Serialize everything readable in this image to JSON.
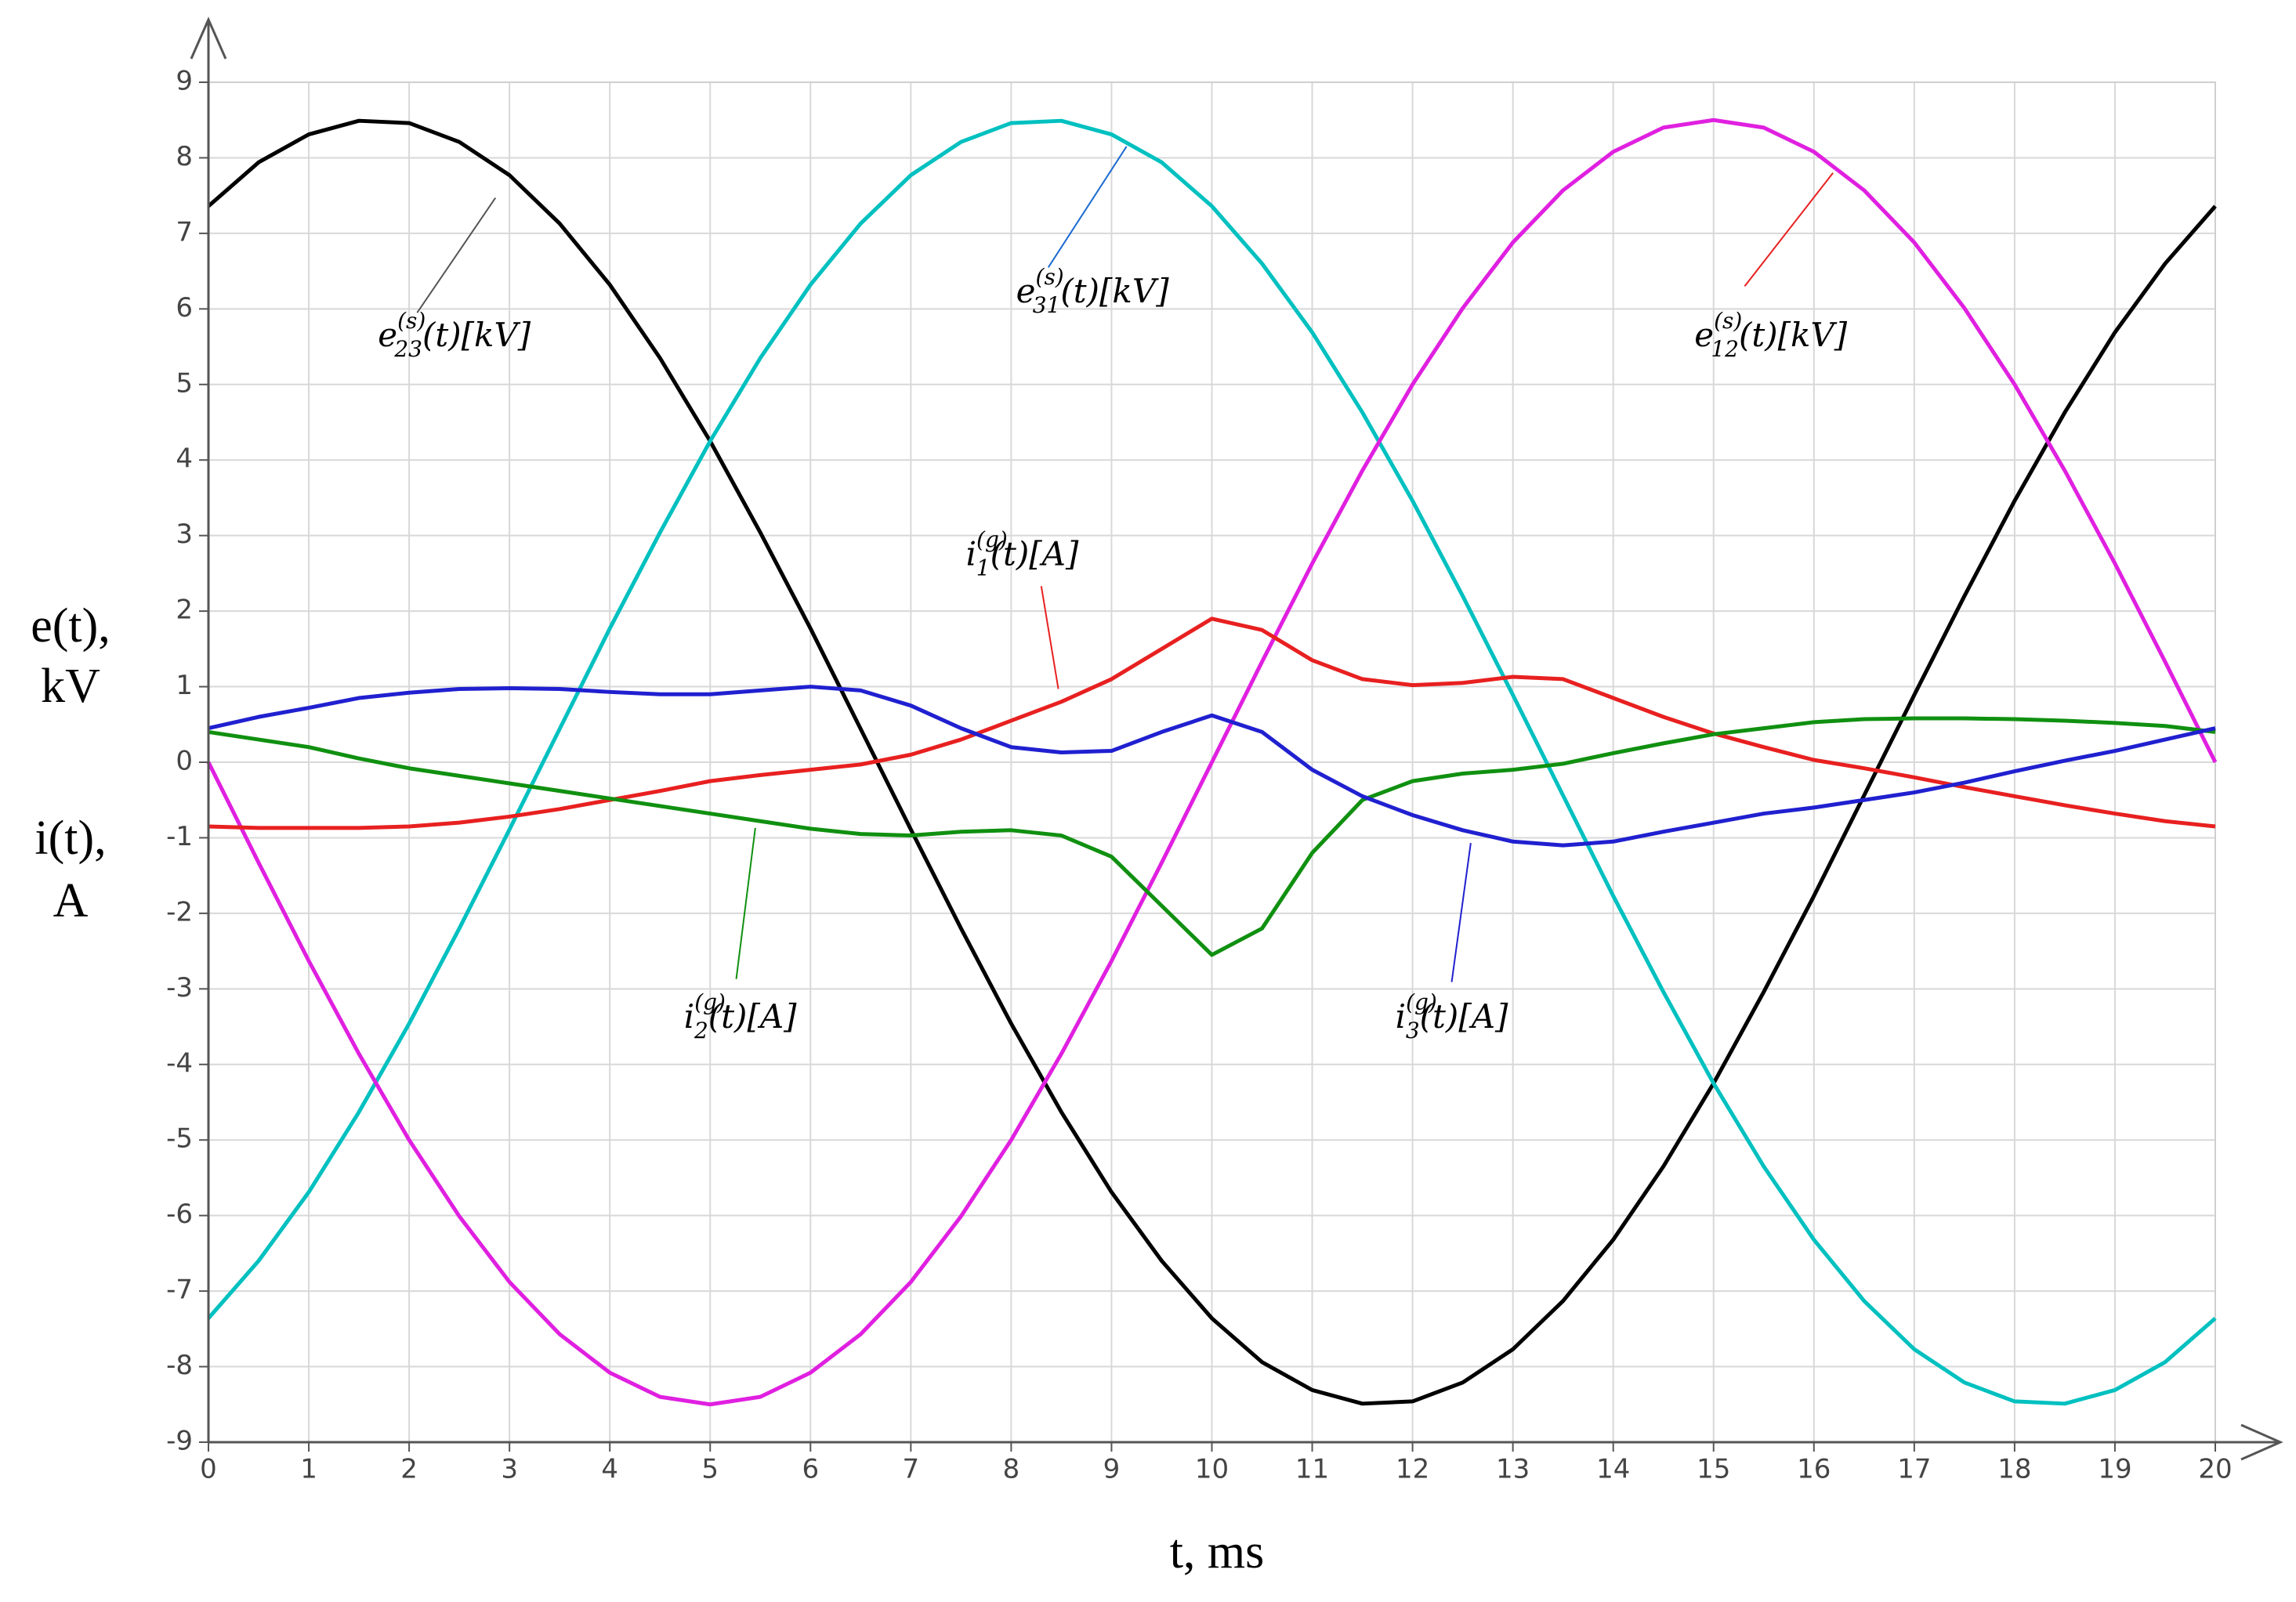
{
  "chart_data": {
    "type": "line",
    "x_label": "t, ms",
    "y_label": [
      "e(t),",
      "kV",
      "i(t),",
      "A"
    ],
    "xlim": [
      0,
      20
    ],
    "xticks": [
      0,
      1,
      2,
      3,
      4,
      5,
      6,
      7,
      8,
      9,
      10,
      11,
      12,
      13,
      14,
      15,
      16,
      17,
      18,
      19,
      20
    ],
    "ylim": [
      -9,
      9
    ],
    "yticks": [
      -9,
      -8,
      -7,
      -6,
      -5,
      -4,
      -3,
      -2,
      -1,
      0,
      1,
      2,
      3,
      4,
      5,
      6,
      7,
      8,
      9
    ],
    "grid": true,
    "x": [
      0,
      0.5,
      1,
      1.5,
      2,
      2.5,
      3,
      3.5,
      4,
      4.5,
      5,
      5.5,
      6,
      6.5,
      7,
      7.5,
      8,
      8.5,
      9,
      9.5,
      10,
      10.5,
      11,
      11.5,
      12,
      12.5,
      13,
      13.5,
      14,
      14.5,
      15,
      15.5,
      16,
      16.5,
      17,
      17.5,
      18,
      18.5,
      19,
      19.5,
      20
    ],
    "series": [
      {
        "color": "#000000",
        "label": {
          "base": "e",
          "sub": "23",
          "sup": "(s)",
          "rest": "(t)[kV]"
        },
        "values": [
          7.36,
          7.94,
          8.31,
          8.49,
          8.46,
          8.21,
          7.77,
          7.13,
          6.32,
          5.35,
          4.25,
          3.04,
          1.77,
          0.44,
          -0.89,
          -2.2,
          -3.46,
          -4.63,
          -5.69,
          -6.6,
          -7.36,
          -7.94,
          -8.31,
          -8.49,
          -8.46,
          -8.21,
          -7.77,
          -7.13,
          -6.32,
          -5.35,
          -4.25,
          -3.04,
          -1.77,
          -0.44,
          0.89,
          2.2,
          3.46,
          4.63,
          5.69,
          6.6,
          7.36
        ]
      },
      {
        "color": "#00c0c0",
        "label": {
          "base": "e",
          "sub": "31",
          "sup": "(s)",
          "rest": "(t)[kV]"
        },
        "values": [
          -7.36,
          -6.6,
          -5.69,
          -4.63,
          -3.46,
          -2.2,
          -0.89,
          0.44,
          1.77,
          3.04,
          4.25,
          5.35,
          6.32,
          7.13,
          7.77,
          8.21,
          8.46,
          8.49,
          8.31,
          7.94,
          7.36,
          6.6,
          5.69,
          4.63,
          3.46,
          2.2,
          0.89,
          -0.44,
          -1.77,
          -3.04,
          -4.25,
          -5.35,
          -6.32,
          -7.13,
          -7.77,
          -8.21,
          -8.46,
          -8.49,
          -8.31,
          -7.94,
          -7.36
        ]
      },
      {
        "color": "#e020e0",
        "label": {
          "base": "e",
          "sub": "12",
          "sup": "(s)",
          "rest": "(t)[kV]"
        },
        "values": [
          0,
          -1.33,
          -2.63,
          -3.86,
          -5,
          -6.01,
          -6.88,
          -7.57,
          -8.08,
          -8.4,
          -8.5,
          -8.4,
          -8.08,
          -7.57,
          -6.88,
          -6.01,
          -5,
          -3.86,
          -2.63,
          -1.33,
          0,
          1.33,
          2.63,
          3.86,
          5,
          6.01,
          6.88,
          7.57,
          8.08,
          8.4,
          8.5,
          8.4,
          8.08,
          7.57,
          6.88,
          6.01,
          5,
          3.86,
          2.63,
          1.33,
          0
        ]
      },
      {
        "color": "#e82020",
        "label": {
          "base": "i",
          "sub": "1",
          "sup": "(g)",
          "rest": "(t)[A]"
        },
        "values": [
          -0.85,
          -0.87,
          -0.87,
          -0.87,
          -0.85,
          -0.8,
          -0.72,
          -0.62,
          -0.5,
          -0.38,
          -0.25,
          -0.17,
          -0.1,
          -0.03,
          0.1,
          0.3,
          0.55,
          0.8,
          1.1,
          1.5,
          1.9,
          1.75,
          1.35,
          1.1,
          1.02,
          1.05,
          1.13,
          1.1,
          0.85,
          0.6,
          0.38,
          0.2,
          0.03,
          -0.08,
          -0.2,
          -0.33,
          -0.45,
          -0.57,
          -0.68,
          -0.78,
          -0.85
        ]
      },
      {
        "color": "#109010",
        "label": {
          "base": "i",
          "sub": "2",
          "sup": "(g)",
          "rest": "(t)[A]"
        },
        "values": [
          0.4,
          0.3,
          0.2,
          0.05,
          -0.08,
          -0.18,
          -0.28,
          -0.38,
          -0.48,
          -0.58,
          -0.68,
          -0.78,
          -0.88,
          -0.95,
          -0.97,
          -0.92,
          -0.9,
          -0.97,
          -1.25,
          -1.9,
          -2.55,
          -2.2,
          -1.2,
          -0.5,
          -0.25,
          -0.15,
          -0.1,
          -0.02,
          0.12,
          0.25,
          0.37,
          0.45,
          0.53,
          0.57,
          0.58,
          0.58,
          0.57,
          0.55,
          0.52,
          0.48,
          0.4
        ]
      },
      {
        "color": "#2020d0",
        "label": {
          "base": "i",
          "sub": "3",
          "sup": "(g)",
          "rest": "(t)[A]"
        },
        "values": [
          0.45,
          0.6,
          0.72,
          0.85,
          0.92,
          0.97,
          0.98,
          0.97,
          0.93,
          0.9,
          0.9,
          0.95,
          1.0,
          0.95,
          0.75,
          0.45,
          0.2,
          0.13,
          0.15,
          0.4,
          0.62,
          0.4,
          -0.1,
          -0.45,
          -0.7,
          -0.9,
          -1.05,
          -1.1,
          -1.05,
          -0.92,
          -0.8,
          -0.68,
          -0.6,
          -0.5,
          -0.4,
          -0.27,
          -0.12,
          0.02,
          0.15,
          0.3,
          0.45
        ]
      }
    ]
  }
}
